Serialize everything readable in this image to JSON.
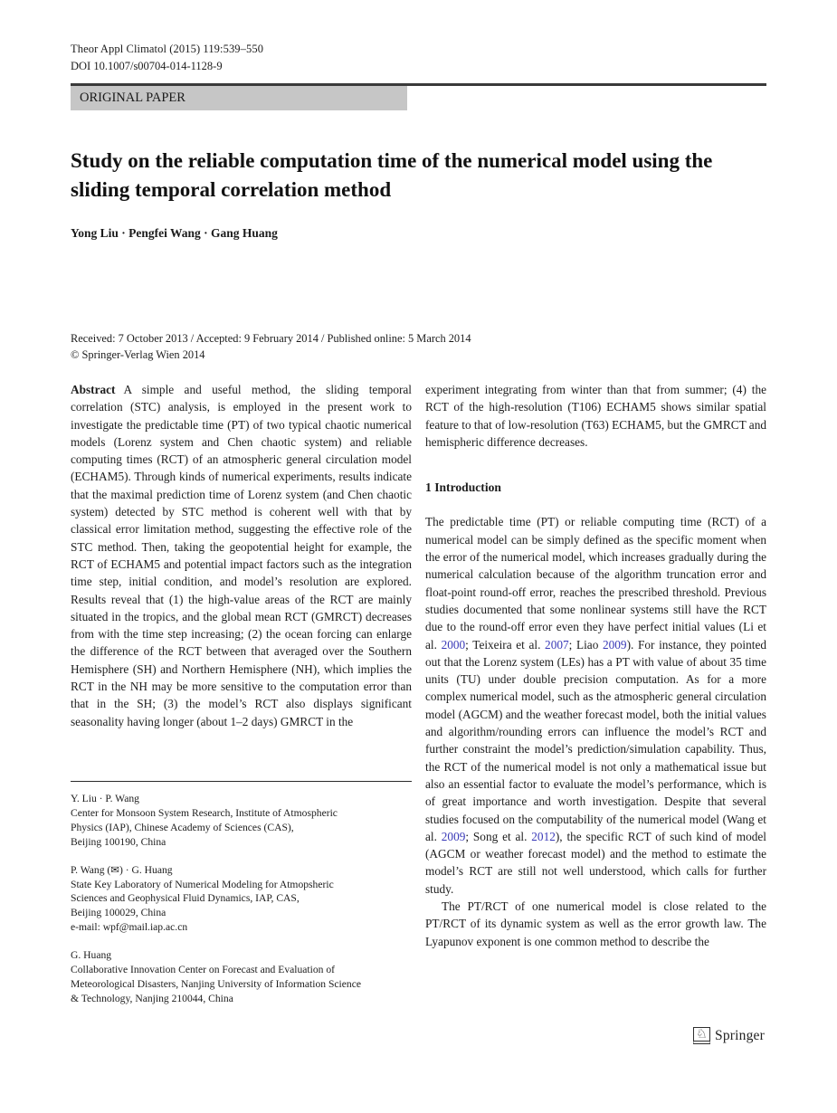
{
  "header": {
    "journal_line": "Theor Appl Climatol (2015) 119:539–550",
    "doi_line": "DOI 10.1007/s00704-014-1128-9",
    "banner_label": "ORIGINAL PAPER"
  },
  "title": "Study on the reliable computation time of the numerical model using the sliding temporal correlation method",
  "authors": "Yong Liu · Pengfei Wang · Gang Huang",
  "dates_line": "Received: 7 October 2013 / Accepted: 9 February 2014 / Published online: 5 March 2014",
  "copyright_line": "© Springer-Verlag Wien 2014",
  "abstract": {
    "label": "Abstract",
    "col1_text": "A simple and useful method, the sliding temporal correlation (STC) analysis, is employed in the present work to investigate the predictable time (PT) of two typical chaotic numerical models (Lorenz system and Chen chaotic system) and reliable computing times (RCT) of an atmospheric general circulation model (ECHAM5). Through kinds of numerical experiments, results indicate that the maximal prediction time of Lorenz system (and Chen chaotic system) detected by STC method is coherent well with that by classical error limitation method, suggesting the effective role of the STC method. Then, taking the geopotential height for example, the RCT of ECHAM5 and potential impact factors such as the integration time step, initial condition, and model’s resolution are explored. Results reveal that (1) the high-value areas of the RCT are mainly situated in the tropics, and the global mean RCT (GMRCT) decreases from with the time step increasing; (2) the ocean forcing can enlarge the difference of the RCT between that averaged over the Southern Hemisphere (SH) and Northern Hemisphere (NH), which implies the RCT in the NH may be more sensitive to the computation error than that in the SH; (3) the model’s RCT also displays significant seasonality having longer (about 1–2 days) GMRCT in the",
    "col2_text": "experiment integrating from winter than that from summer; (4) the RCT of the high-resolution (T106) ECHAM5 shows similar spatial feature to that of low-resolution (T63) ECHAM5, but the GMRCT and hemispheric difference decreases."
  },
  "introduction": {
    "heading": "1 Introduction",
    "para1_segments": [
      {
        "t": "The predictable time (PT) or reliable computing time (RCT) of a numerical model can be simply defined as the specific moment when the error of the numerical model, which increases gradually during the numerical calculation because of the algorithm truncation error and float-point round-off error, reaches the prescribed threshold. Previous studies documented that some nonlinear systems still have the RCT due to the round-off error even they have perfect initial values (Li et al. ",
        "s": "normal"
      },
      {
        "t": "2000",
        "s": "cite"
      },
      {
        "t": "; Teixeira et al. ",
        "s": "normal"
      },
      {
        "t": "2007",
        "s": "cite"
      },
      {
        "t": "; Liao ",
        "s": "normal"
      },
      {
        "t": "2009",
        "s": "cite"
      },
      {
        "t": "). For instance, they pointed out that the Lorenz system (LEs) has a PT with value of about 35 time units (TU) under double precision computation. As for a more complex numerical model, such as the atmospheric general circulation model (AGCM) and the weather forecast model, both the initial values and algorithm/rounding errors can influence the model’s RCT and further constraint the model’s prediction/simulation capability. Thus, the RCT of the numerical model is not only a mathematical issue but also an essential factor to evaluate the model’s performance, which is of great importance and worth investigation. Despite that several studies focused on the computability of the numerical model (Wang et al. ",
        "s": "normal"
      },
      {
        "t": "2009",
        "s": "cite"
      },
      {
        "t": "; Song et al. ",
        "s": "normal"
      },
      {
        "t": "2012",
        "s": "cite"
      },
      {
        "t": "), the specific RCT of such kind of model (AGCM or weather forecast model) and the method to estimate the model’s RCT are still not well understood, which calls for further study.",
        "s": "normal"
      }
    ],
    "para2_text": "The PT/RCT of one numerical model is close related to the PT/RCT of its dynamic system as well as the error growth law. The Lyapunov exponent is one common method to describe the"
  },
  "footnotes": [
    {
      "lines": [
        "Y. Liu · P. Wang",
        "Center for Monsoon System Research, Institute of Atmospheric",
        "Physics (IAP), Chinese Academy of Sciences (CAS),",
        "Beijing 100190, China"
      ]
    },
    {
      "lines": [
        "P. Wang (✉) · G. Huang",
        "State Key Laboratory of Numerical Modeling for Atmopsheric",
        "Sciences and Geophysical Fluid Dynamics, IAP, CAS,",
        "Beijing 100029, China",
        "e-mail: wpf@mail.iap.ac.cn"
      ]
    },
    {
      "lines": [
        "G. Huang",
        "Collaborative Innovation Center on Forecast and Evaluation of",
        "Meteorological Disasters, Nanjing University of Information Science",
        "& Technology, Nanjing 210044, China"
      ]
    }
  ],
  "footer": {
    "publisher_mark": "♘",
    "publisher_word": "Springer"
  },
  "colors": {
    "citation_link": "#3a3ab8",
    "banner_background": "#c6c6c6",
    "rule": "#3a3a3a"
  }
}
